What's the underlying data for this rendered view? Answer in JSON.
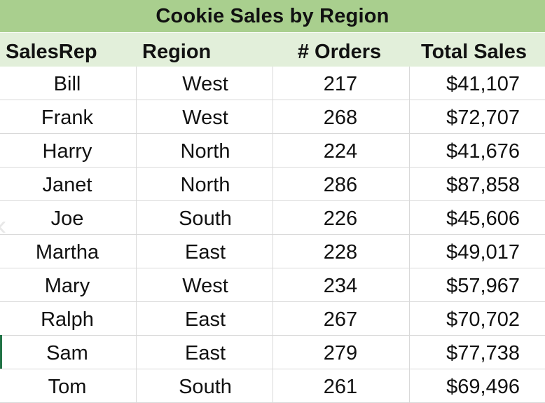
{
  "table": {
    "title": "Cookie Sales by Region",
    "columns": [
      "SalesRep",
      "Region",
      "# Orders",
      "Total Sales"
    ],
    "rows": [
      {
        "salesrep": "Bill",
        "region": "West",
        "orders": "217",
        "total": "$41,107"
      },
      {
        "salesrep": "Frank",
        "region": "West",
        "orders": "268",
        "total": "$72,707"
      },
      {
        "salesrep": "Harry",
        "region": "North",
        "orders": "224",
        "total": "$41,676"
      },
      {
        "salesrep": "Janet",
        "region": "North",
        "orders": "286",
        "total": "$87,858"
      },
      {
        "salesrep": "Joe",
        "region": "South",
        "orders": "226",
        "total": "$45,606"
      },
      {
        "salesrep": "Martha",
        "region": "East",
        "orders": "228",
        "total": "$49,017"
      },
      {
        "salesrep": "Mary",
        "region": "West",
        "orders": "234",
        "total": "$57,967"
      },
      {
        "salesrep": "Ralph",
        "region": "East",
        "orders": "267",
        "total": "$70,702"
      },
      {
        "salesrep": "Sam",
        "region": "East",
        "orders": "279",
        "total": "$77,738"
      },
      {
        "salesrep": "Tom",
        "region": "South",
        "orders": "261",
        "total": "$69,496"
      }
    ]
  },
  "colors": {
    "title_fill": "#a9cf8e",
    "header_fill": "#e2efda",
    "gridline": "#d9d9d9",
    "selection_edge": "#217346"
  }
}
